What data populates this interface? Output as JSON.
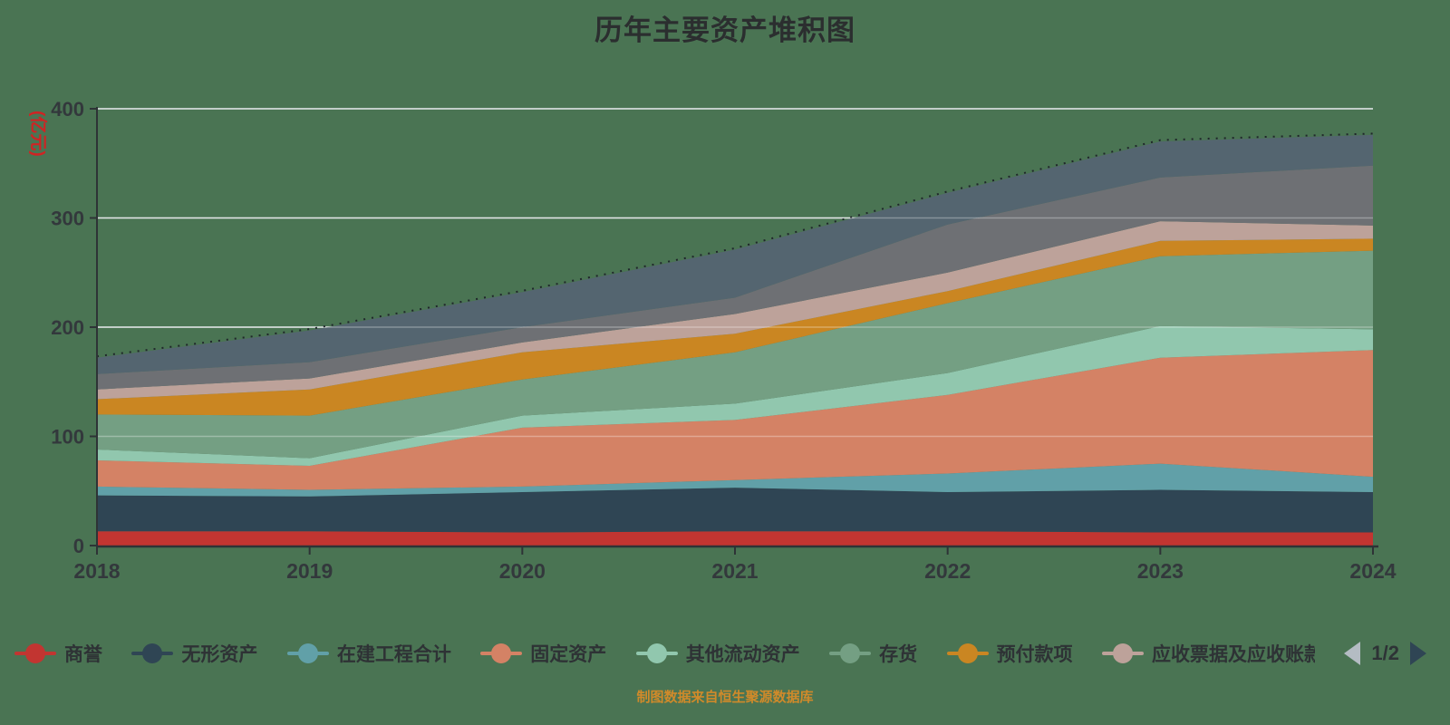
{
  "title": "历年主要资产堆积图",
  "footer": {
    "text": "制图数据来自恒生聚源数据库",
    "color": "#d08a2a"
  },
  "y_axis": {
    "name": "(亿元)",
    "name_color": "#d02323",
    "ticks": [
      0,
      100,
      200,
      300,
      400
    ],
    "max": 400
  },
  "x_axis": {
    "categories": [
      "2018",
      "2019",
      "2020",
      "2021",
      "2022",
      "2023",
      "2024"
    ]
  },
  "legend": {
    "items": [
      {
        "label": "商誉",
        "color": "#c23531"
      },
      {
        "label": "无形资产",
        "color": "#2f4554"
      },
      {
        "label": "在建工程合计",
        "color": "#61a0a8"
      },
      {
        "label": "固定资产",
        "color": "#d48265"
      },
      {
        "label": "其他流动资产",
        "color": "#91c7ae"
      },
      {
        "label": "存货",
        "color": "#749f83"
      },
      {
        "label": "预付款项",
        "color": "#ca8622"
      },
      {
        "label": "应收票据及应收账款",
        "color": "#bda29a",
        "truncated": true
      }
    ],
    "pager": {
      "page": "1/2",
      "prev_color": "#b4bcc3",
      "next_color": "#2f4554"
    }
  },
  "chart_data": {
    "type": "area",
    "stacked": true,
    "x": [
      "2018",
      "2019",
      "2020",
      "2021",
      "2022",
      "2023",
      "2024"
    ],
    "ylabel": "(亿元)",
    "ylim": [
      0,
      400
    ],
    "grid": true,
    "legend_position": "bottom",
    "legend_pages": "1/2",
    "top_edge_dotted_line": true,
    "series": [
      {
        "name": "商誉",
        "color": "#c23531",
        "values": [
          13,
          13,
          12,
          13,
          13,
          12,
          12
        ]
      },
      {
        "name": "无形资产",
        "color": "#2f4554",
        "values": [
          33,
          32,
          37,
          40,
          36,
          39,
          37
        ]
      },
      {
        "name": "在建工程合计",
        "color": "#61a0a8",
        "values": [
          8,
          6,
          5,
          7,
          17,
          24,
          14
        ]
      },
      {
        "name": "固定资产",
        "color": "#d48265",
        "values": [
          24,
          22,
          54,
          55,
          72,
          97,
          116
        ]
      },
      {
        "name": "其他流动资产",
        "color": "#91c7ae",
        "values": [
          10,
          7,
          11,
          15,
          20,
          29,
          19
        ]
      },
      {
        "name": "存货",
        "color": "#749f83",
        "values": [
          32,
          39,
          33,
          47,
          64,
          64,
          72
        ]
      },
      {
        "name": "预付款项",
        "color": "#ca8622",
        "values": [
          14,
          24,
          25,
          17,
          11,
          14,
          11
        ]
      },
      {
        "name": "应收票据及应收账款",
        "color": "#bda29a",
        "values": [
          9,
          10,
          9,
          18,
          17,
          18,
          12
        ]
      },
      {
        "name": "",
        "color": "#6e7074",
        "values": [
          14,
          15,
          14,
          15,
          44,
          40,
          55
        ],
        "legend_note": "图例第2页，名称不可见"
      },
      {
        "name": "",
        "color": "#546570",
        "values": [
          15,
          29,
          32,
          44,
          29,
          33,
          28
        ],
        "legend_note": "图例第2页，名称不可见"
      }
    ]
  }
}
